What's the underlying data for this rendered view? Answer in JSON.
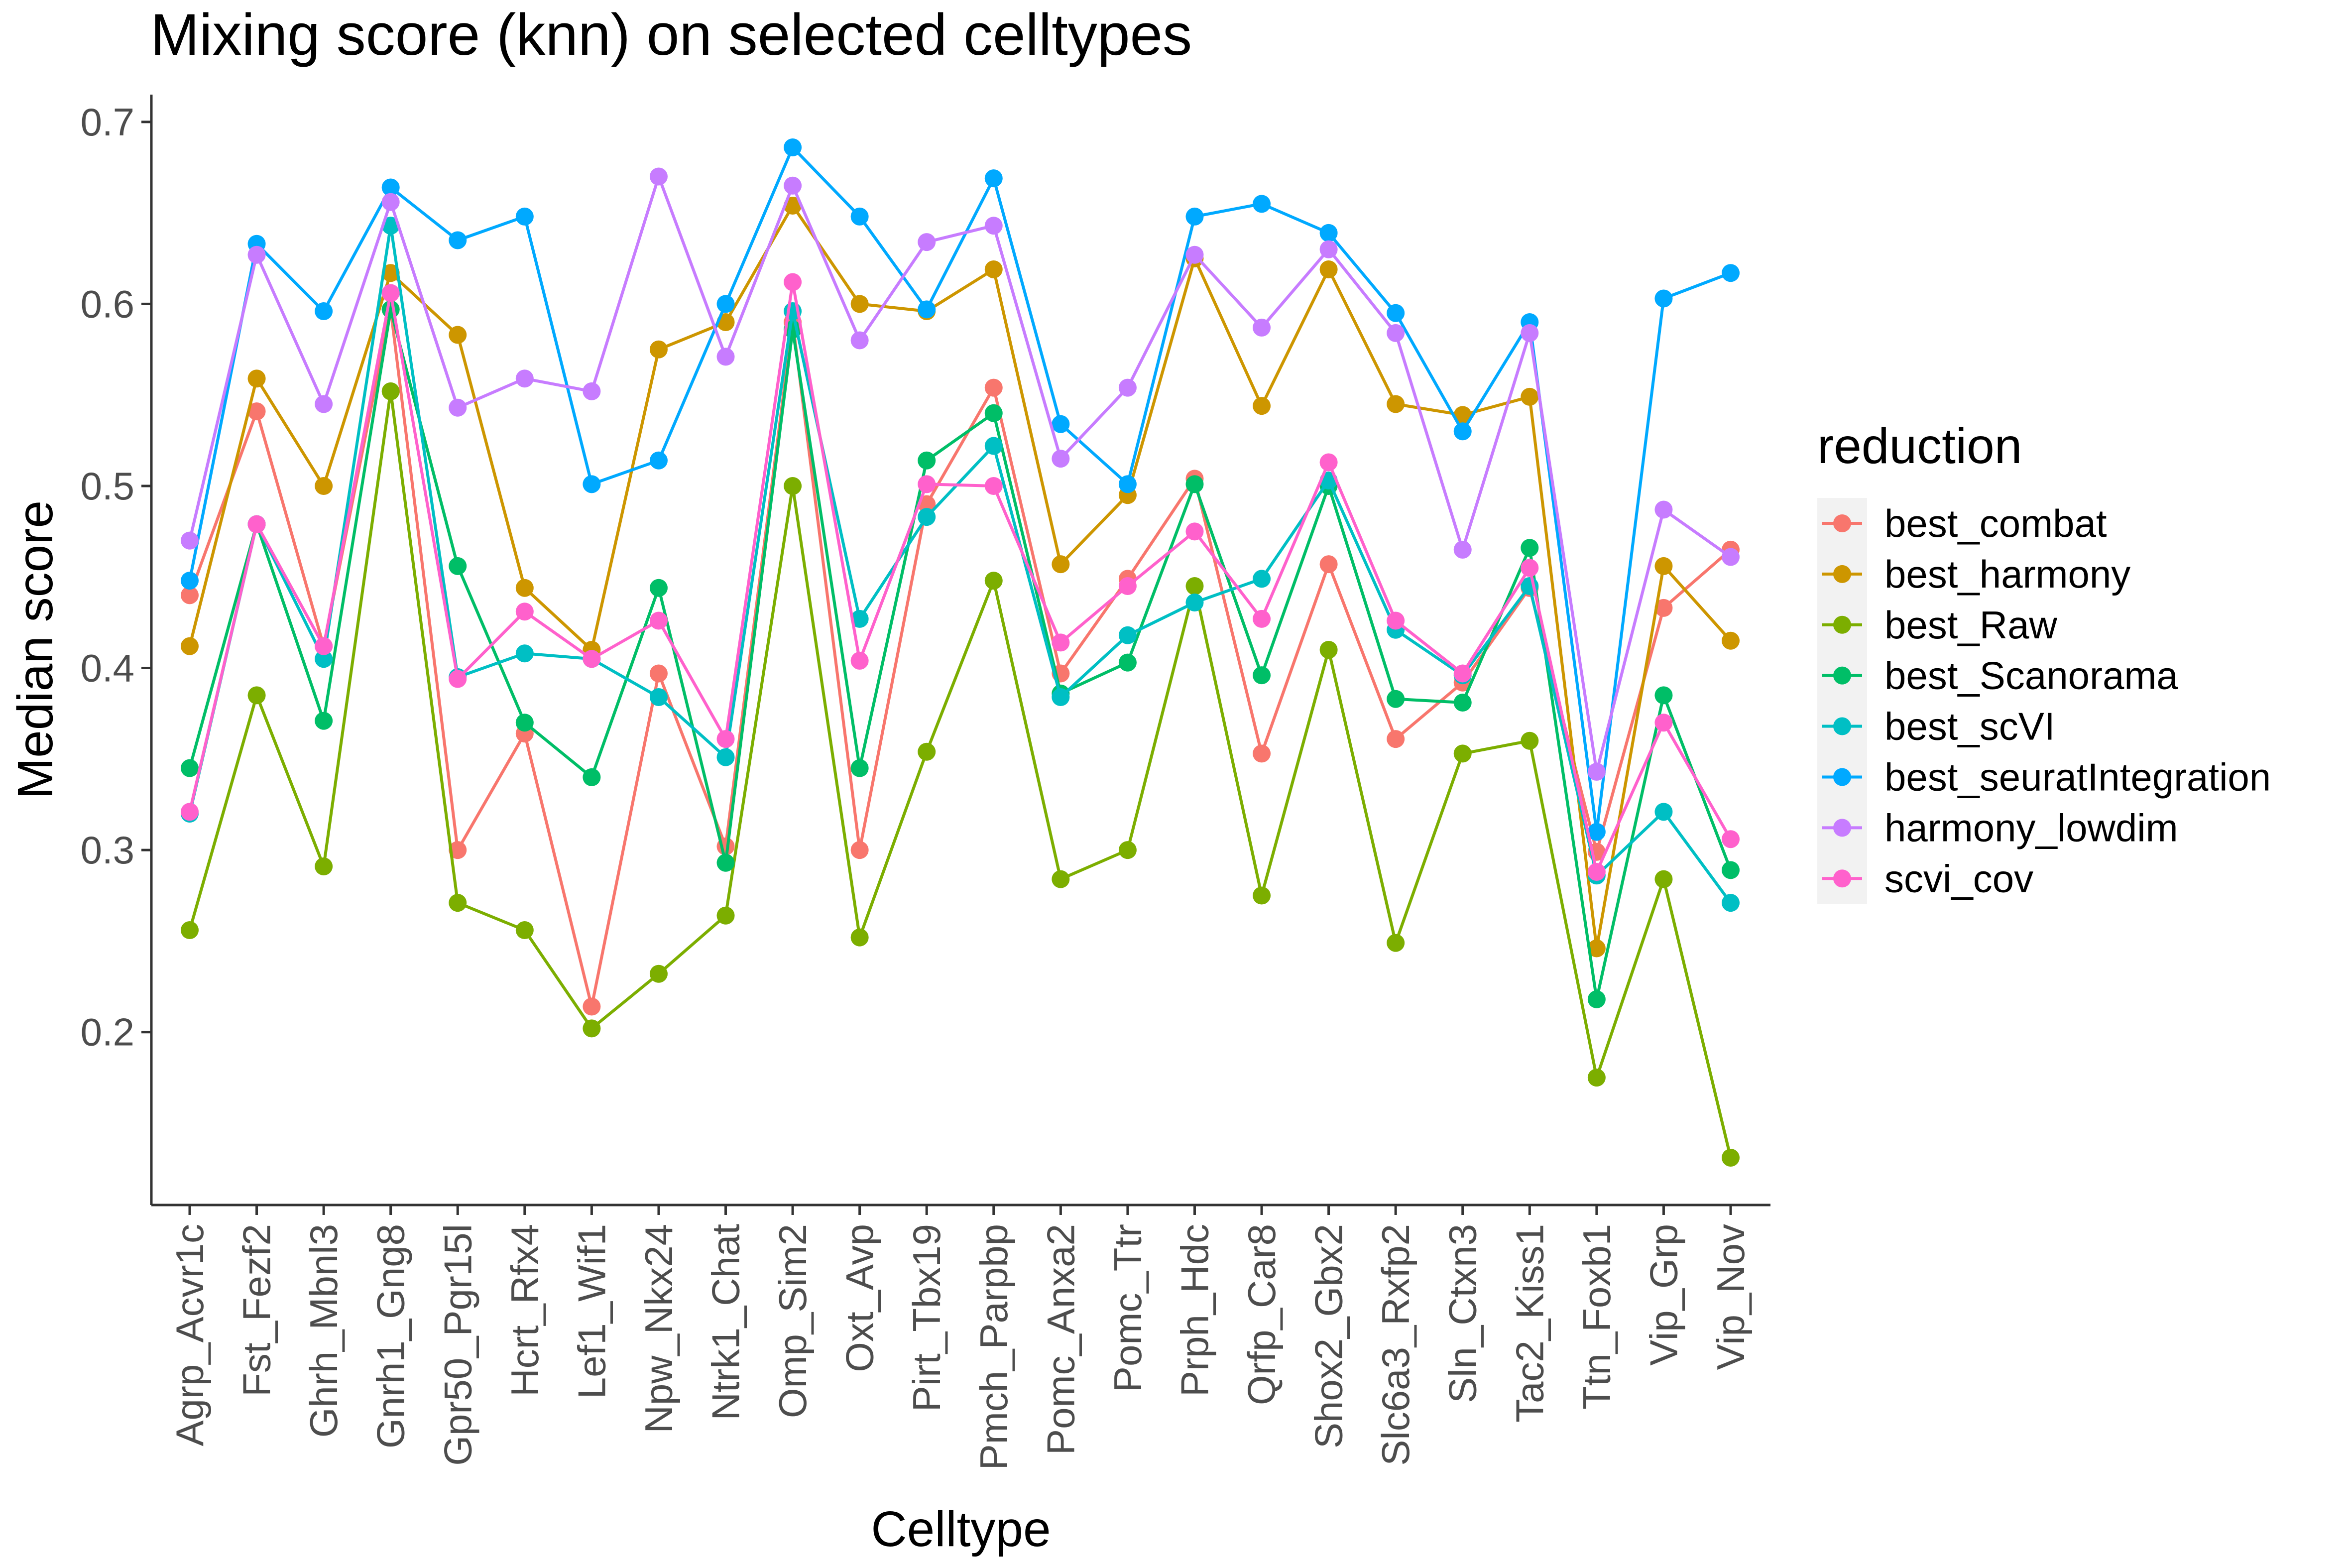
{
  "chart_data": {
    "type": "line",
    "title": "Mixing score (knn) on selected celltypes",
    "xlabel": "Celltype",
    "ylabel": "Median score",
    "ylim": [
      0.105,
      0.715
    ],
    "yticks": [
      "0.2",
      "0.3",
      "0.4",
      "0.5",
      "0.6",
      "0.7"
    ],
    "grid": false,
    "legend_title": "reduction",
    "legend_position": "right",
    "categories": [
      "Agrp_Acvr1c",
      "Fst_Fezf2",
      "Ghrh_Mbnl3",
      "Gnrh1_Gng8",
      "Gpr50_Pgr15l",
      "Hcrt_Rfx4",
      "Lef1_Wif1",
      "Npw_Nkx24",
      "Ntrk1_Chat",
      "Omp_Sim2",
      "Oxt_Avp",
      "Pirt_Tbx19",
      "Pmch_Parpbp",
      "Pomc_Anxa2",
      "Pomc_Ttr",
      "Prph_Hdc",
      "Qrfp_Car8",
      "Shox2_Gbx2",
      "Slc6a3_Rxfp2",
      "Sln_Ctxn3",
      "Tac2_Kiss1",
      "Ttn_Foxb1",
      "Vip_Grp",
      "Vip_Nov"
    ],
    "series": [
      {
        "name": "best_combat",
        "color": "#F8766D",
        "values": [
          0.44,
          0.541,
          0.412,
          0.597,
          0.3,
          0.364,
          0.214,
          0.397,
          0.302,
          0.59,
          0.3,
          0.49,
          0.554,
          0.397,
          0.449,
          0.504,
          0.353,
          0.457,
          0.361,
          0.392,
          0.444,
          0.299,
          0.433,
          0.465
        ]
      },
      {
        "name": "best_harmony",
        "color": "#CD9600",
        "values": [
          0.412,
          0.559,
          0.5,
          0.617,
          0.583,
          0.444,
          0.41,
          0.575,
          0.59,
          0.654,
          0.6,
          0.596,
          0.619,
          0.457,
          0.495,
          0.625,
          0.544,
          0.619,
          0.545,
          0.539,
          0.549,
          0.246,
          0.456,
          0.415
        ]
      },
      {
        "name": "best_Raw",
        "color": "#7CAE00",
        "values": [
          0.256,
          0.385,
          0.291,
          0.552,
          0.271,
          0.256,
          0.202,
          0.232,
          0.264,
          0.5,
          0.252,
          0.354,
          0.448,
          0.284,
          0.3,
          0.445,
          0.275,
          0.41,
          0.249,
          0.353,
          0.36,
          0.175,
          0.284,
          0.131
        ]
      },
      {
        "name": "best_Scanorama",
        "color": "#00BE67",
        "values": [
          0.345,
          0.479,
          0.371,
          0.597,
          0.456,
          0.37,
          0.34,
          0.444,
          0.293,
          0.586,
          0.345,
          0.514,
          0.54,
          0.386,
          0.403,
          0.501,
          0.396,
          0.5,
          0.383,
          0.381,
          0.466,
          0.218,
          0.385,
          0.289
        ]
      },
      {
        "name": "best_scVI",
        "color": "#00BFC4",
        "values": [
          0.32,
          0.479,
          0.405,
          0.643,
          0.395,
          0.408,
          0.405,
          0.384,
          0.351,
          0.596,
          0.427,
          0.483,
          0.522,
          0.384,
          0.418,
          0.436,
          0.449,
          0.503,
          0.421,
          0.396,
          0.445,
          0.286,
          0.321,
          0.271
        ]
      },
      {
        "name": "best_seuratIntegration",
        "color": "#00A9FF",
        "values": [
          0.448,
          0.633,
          0.596,
          0.664,
          0.635,
          0.648,
          0.501,
          0.514,
          0.6,
          0.686,
          0.648,
          0.597,
          0.669,
          0.534,
          0.501,
          0.648,
          0.655,
          0.639,
          0.595,
          0.53,
          0.59,
          0.31,
          0.603,
          0.617
        ]
      },
      {
        "name": "harmony_lowdim",
        "color": "#C77CFF",
        "values": [
          0.47,
          0.627,
          0.545,
          0.656,
          0.543,
          0.559,
          0.552,
          0.67,
          0.571,
          0.665,
          0.58,
          0.634,
          0.643,
          0.515,
          0.554,
          0.627,
          0.587,
          0.63,
          0.584,
          0.465,
          0.584,
          0.343,
          0.487,
          0.461
        ]
      },
      {
        "name": "scvi_cov",
        "color": "#FF61CC",
        "values": [
          0.321,
          0.479,
          0.412,
          0.606,
          0.394,
          0.431,
          0.405,
          0.426,
          0.361,
          0.612,
          0.404,
          0.501,
          0.5,
          0.414,
          0.445,
          0.475,
          0.427,
          0.513,
          0.426,
          0.397,
          0.455,
          0.288,
          0.37,
          0.306
        ]
      }
    ]
  }
}
